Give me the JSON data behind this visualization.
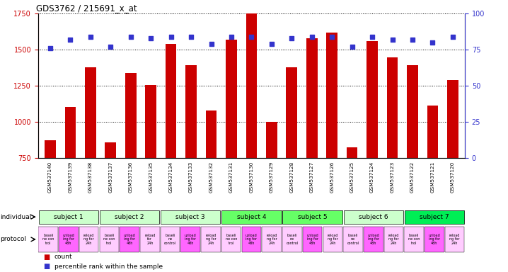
{
  "title": "GDS3762 / 215691_x_at",
  "samples": [
    "GSM537140",
    "GSM537139",
    "GSM537138",
    "GSM537137",
    "GSM537136",
    "GSM537135",
    "GSM537134",
    "GSM537133",
    "GSM537132",
    "GSM537131",
    "GSM537130",
    "GSM537129",
    "GSM537128",
    "GSM537127",
    "GSM537126",
    "GSM537125",
    "GSM537124",
    "GSM537123",
    "GSM537122",
    "GSM537121",
    "GSM537120"
  ],
  "bar_values": [
    870,
    1100,
    1380,
    855,
    1340,
    1255,
    1540,
    1390,
    1080,
    1570,
    1750,
    1000,
    1380,
    1580,
    1620,
    820,
    1560,
    1445,
    1390,
    1110,
    1290
  ],
  "dot_values": [
    76,
    82,
    84,
    77,
    84,
    83,
    84,
    84,
    79,
    84,
    84,
    79,
    83,
    84,
    84,
    77,
    84,
    82,
    82,
    80,
    84
  ],
  "ylim_left": [
    750,
    1750
  ],
  "ylim_right": [
    0,
    100
  ],
  "yticks_left": [
    750,
    1000,
    1250,
    1500,
    1750
  ],
  "yticks_right": [
    0,
    25,
    50,
    75,
    100
  ],
  "bar_color": "#cc0000",
  "dot_color": "#3333cc",
  "grid_color": "#000000",
  "subjects": [
    {
      "label": "subject 1",
      "start": 0,
      "end": 3,
      "color": "#ccffcc"
    },
    {
      "label": "subject 2",
      "start": 3,
      "end": 6,
      "color": "#ccffcc"
    },
    {
      "label": "subject 3",
      "start": 6,
      "end": 9,
      "color": "#ccffcc"
    },
    {
      "label": "subject 4",
      "start": 9,
      "end": 12,
      "color": "#66ff66"
    },
    {
      "label": "subject 5",
      "start": 12,
      "end": 15,
      "color": "#66ff66"
    },
    {
      "label": "subject 6",
      "start": 15,
      "end": 18,
      "color": "#ccffcc"
    },
    {
      "label": "subject 7",
      "start": 18,
      "end": 21,
      "color": "#00ee55"
    }
  ],
  "protocols": [
    {
      "label": "baseli\nne con\ntrol",
      "color": "#ffccff"
    },
    {
      "label": "unload\ning for\n48h",
      "color": "#ff66ff"
    },
    {
      "label": "reload\nng for\n24h",
      "color": "#ffccff"
    },
    {
      "label": "baseli\nne con\ntrol",
      "color": "#ffccff"
    },
    {
      "label": "unload\ning for\n48h",
      "color": "#ff66ff"
    },
    {
      "label": "reload\nfor\n24h",
      "color": "#ffccff"
    },
    {
      "label": "baseli\nne\ncontrol",
      "color": "#ffccff"
    },
    {
      "label": "unload\ning for\n48h",
      "color": "#ff66ff"
    },
    {
      "label": "reload\nng for\n24h",
      "color": "#ffccff"
    },
    {
      "label": "baseli\nne con\ntrol",
      "color": "#ffccff"
    },
    {
      "label": "unload\ning for\n48h",
      "color": "#ff66ff"
    },
    {
      "label": "reload\nng for\n24h",
      "color": "#ffccff"
    },
    {
      "label": "baseli\nne\ncontrol",
      "color": "#ffccff"
    },
    {
      "label": "unload\ning for\n48h",
      "color": "#ff66ff"
    },
    {
      "label": "reload\nng for\n24h",
      "color": "#ffccff"
    },
    {
      "label": "baseli\nne\ncontrol",
      "color": "#ffccff"
    },
    {
      "label": "unload\ning for\n48h",
      "color": "#ff66ff"
    },
    {
      "label": "reload\nng for\n24h",
      "color": "#ffccff"
    },
    {
      "label": "baseli\nne con\ntrol",
      "color": "#ffccff"
    },
    {
      "label": "unload\ning for\n48h",
      "color": "#ff66ff"
    },
    {
      "label": "reload\nng for\n24h",
      "color": "#ffccff"
    }
  ],
  "bg_color": "#ffffff",
  "tick_label_color_left": "#cc0000",
  "tick_label_color_right": "#3333cc"
}
